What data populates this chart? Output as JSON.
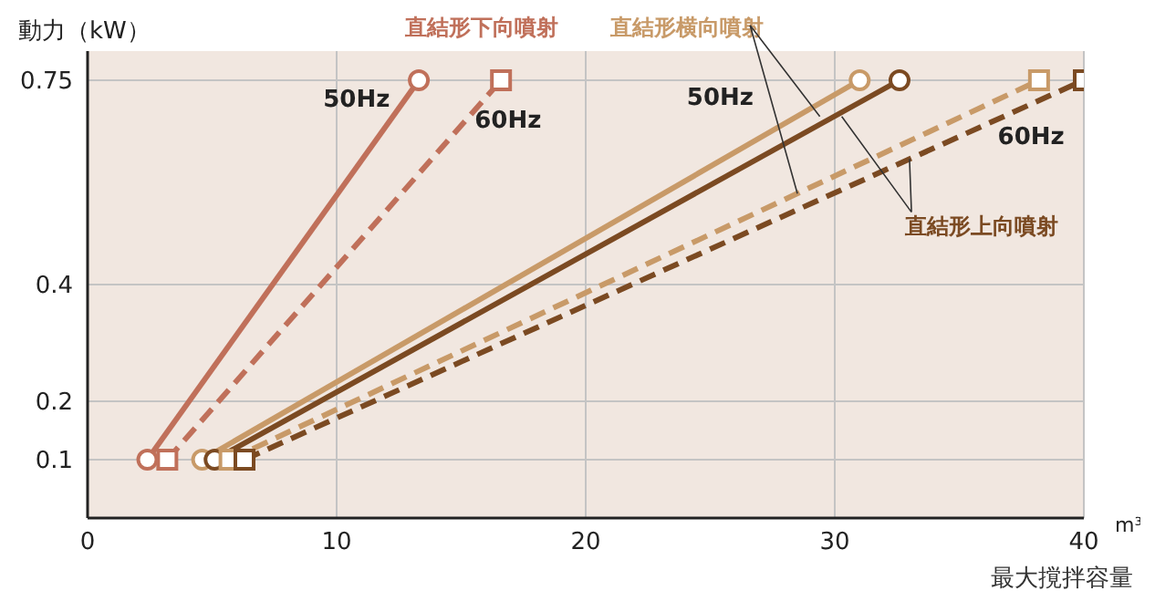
{
  "chart_data": {
    "type": "line",
    "ylabel": "動力（kW）",
    "xlabel": "最大撹拌容量",
    "xlim": [
      0,
      40
    ],
    "xticks": [
      0,
      10,
      20,
      30,
      40
    ],
    "ylim": [
      0,
      0.8
    ],
    "yticks": [
      0.1,
      0.2,
      0.4,
      0.75
    ],
    "grid": true,
    "series": [
      {
        "color": "#c0705a",
        "x": [
          2.4,
          13.3
        ],
        "values": [
          0.1,
          0.75
        ],
        "marker": "circle",
        "line_style": "solid"
      },
      {
        "color": "#c0705a",
        "x": [
          3.2,
          16.6
        ],
        "values": [
          0.1,
          0.75
        ],
        "marker": "square",
        "line_style": "dashed"
      },
      {
        "color": "#c89a68",
        "x": [
          4.6,
          31.0
        ],
        "values": [
          0.1,
          0.75
        ],
        "marker": "circle",
        "line_style": "solid"
      },
      {
        "color": "#c89a68",
        "x": [
          5.7,
          38.2
        ],
        "values": [
          0.1,
          0.75
        ],
        "marker": "square",
        "line_style": "dashed"
      },
      {
        "color": "#7b4a22",
        "x": [
          5.1,
          32.6
        ],
        "values": [
          0.1,
          0.75
        ],
        "marker": "circle",
        "line_style": "solid"
      },
      {
        "color": "#7b4a22",
        "x": [
          6.3,
          40
        ],
        "values": [
          0.1,
          0.75
        ],
        "marker": "square",
        "line_style": "dashed"
      }
    ],
    "annotations": [
      "直結形下向噴射",
      "50Hz",
      "60Hz",
      {
        "text": "直結形横向噴射",
        "x": 28.5,
        "y": 0.556
      },
      "50Hz",
      "60Hz",
      {
        "text": "直結形上向噴射",
        "x": 33,
        "y": 0.615
      },
      "m³"
    ]
  }
}
